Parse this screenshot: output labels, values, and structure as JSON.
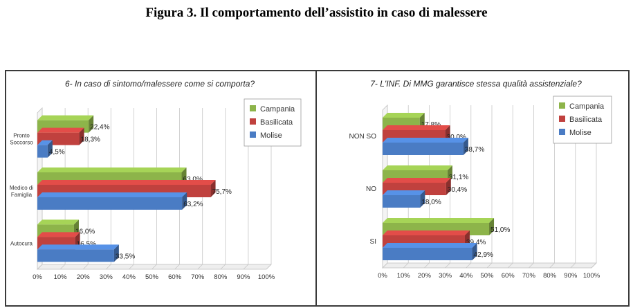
{
  "figure_title": "Figura 3. Il comportamento dell’assistito in caso di malessere",
  "colors": {
    "Campania": "#8db44a",
    "Basilicata": "#c0413e",
    "Molise": "#4a7cc4"
  },
  "chart_data": [
    {
      "type": "bar",
      "orientation": "horizontal",
      "title": "6- In caso di sintomo/malessere come si comporta?",
      "categories": [
        [
          "Pronto",
          "Soccorso"
        ],
        [
          "Medico di",
          "Famiglia"
        ],
        [
          "Autocura"
        ]
      ],
      "category_labels": [
        "Pronto Soccorso",
        "Medico di Famiglia",
        "Autocura"
      ],
      "series": [
        {
          "name": "Campania",
          "values": [
            22.4,
            63.0,
            16.0
          ],
          "labels": [
            "22,4%",
            "63,0%",
            "16,0%"
          ]
        },
        {
          "name": "Basilicata",
          "values": [
            18.3,
            75.7,
            16.5
          ],
          "labels": [
            "18,3%",
            "75,7%",
            "16,5%"
          ]
        },
        {
          "name": "Molise",
          "values": [
            4.5,
            63.2,
            33.5
          ],
          "labels": [
            "4,5%",
            "63,2%",
            "33,5%"
          ]
        }
      ],
      "xlim": [
        0,
        100
      ],
      "xticks": [
        "0%",
        "10%",
        "20%",
        "30%",
        "40%",
        "50%",
        "60%",
        "70%",
        "80%",
        "90%",
        "100%"
      ],
      "grid": true,
      "legend": "top-right"
    },
    {
      "type": "bar",
      "orientation": "horizontal",
      "title": "7- L'INF. Di MMG garantisce stessa qualità assistenziale?",
      "categories": [
        [
          "NON SO"
        ],
        [
          "NO"
        ],
        [
          "SI"
        ]
      ],
      "category_labels": [
        "NON SO",
        "NO",
        "SI"
      ],
      "series": [
        {
          "name": "Campania",
          "values": [
            17.8,
            31.1,
            51.0
          ],
          "labels": [
            "17,8%",
            "31,1%",
            "51,0%"
          ]
        },
        {
          "name": "Basilicata",
          "values": [
            30.0,
            30.4,
            39.4
          ],
          "labels": [
            "30,0%",
            "30,4%",
            "39,4%"
          ]
        },
        {
          "name": "Molise",
          "values": [
            38.7,
            18.0,
            42.9
          ],
          "labels": [
            "38,7%",
            "18,0%",
            "42,9%"
          ]
        }
      ],
      "xlim": [
        0,
        100
      ],
      "xticks": [
        "0%",
        "10%",
        "20%",
        "30%",
        "40%",
        "50%",
        "60%",
        "70%",
        "80%",
        "90%",
        "100%"
      ],
      "grid": true,
      "legend": "top-right"
    }
  ]
}
